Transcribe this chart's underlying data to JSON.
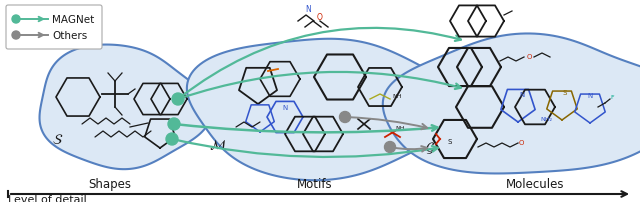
{
  "fig_width": 6.4,
  "fig_height": 2.03,
  "dpi": 100,
  "bg_color": "#ffffff",
  "blob_fill_color": "#dce8f5",
  "blob_edge_color": "#5580c0",
  "green_color": "#52b998",
  "gray_color": "#888888",
  "black_color": "#1a1a1a",
  "blue_color": "#3355cc",
  "red_color": "#cc2200",
  "yellow_color": "#aaaa00",
  "teal_color": "#44aaaa",
  "label_shapes": "Shapes",
  "label_motifs": "Motifs",
  "label_molecules": "Molecules",
  "label_detail": "Level of detail",
  "legend_magnet": "MAGNet",
  "legend_others": "Others"
}
